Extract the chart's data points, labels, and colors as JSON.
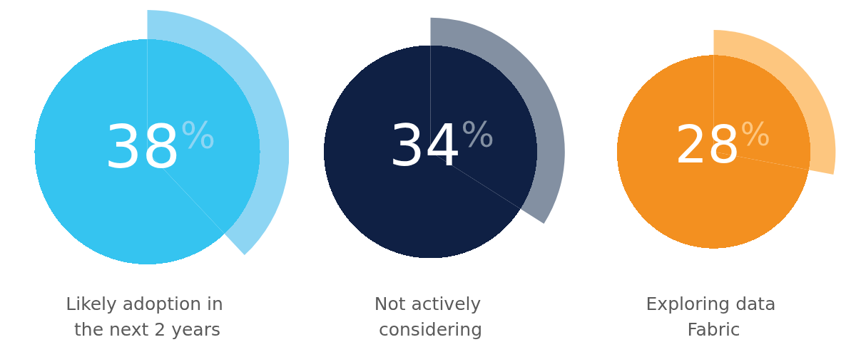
{
  "chart_data": [
    {
      "type": "pie",
      "title": "Likely adoption in the next 2 years",
      "categories": [
        null,
        null
      ],
      "values": [
        38,
        62
      ],
      "colors": [
        "#8dd5f3",
        "#35c4f0"
      ],
      "value_labels": [
        "38%",
        null
      ]
    },
    {
      "type": "pie",
      "title": "Not actively considering",
      "categories": [
        null,
        null
      ],
      "values": [
        34,
        66
      ],
      "colors": [
        "#8390a2",
        "#0f2044"
      ],
      "value_labels": [
        "34%",
        null
      ]
    },
    {
      "type": "pie",
      "title": "Exploring data Fabric",
      "categories": [
        null,
        null
      ],
      "values": [
        28,
        72
      ],
      "colors": [
        "#fdc67f",
        "#f39020"
      ],
      "value_labels": [
        "28%",
        null
      ]
    }
  ]
}
